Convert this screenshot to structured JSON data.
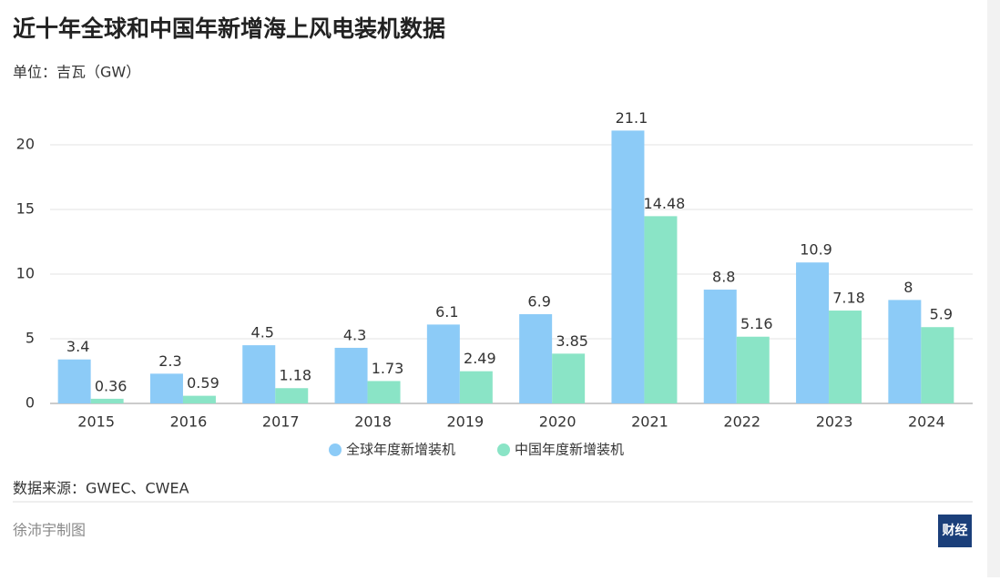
{
  "chart_data": {
    "type": "bar",
    "title": "近十年全球和中国年新增海上风电装机数据",
    "subtitle": "单位：吉瓦（GW）",
    "categories": [
      "2015",
      "2016",
      "2017",
      "2018",
      "2019",
      "2020",
      "2021",
      "2022",
      "2023",
      "2024"
    ],
    "series": [
      {
        "name": "全球年度新增装机",
        "color": "#8ccbf7",
        "values": [
          3.4,
          2.3,
          4.5,
          4.3,
          6.1,
          6.9,
          21.1,
          8.8,
          10.9,
          8
        ]
      },
      {
        "name": "中国年度新增装机",
        "color": "#8ae4c6",
        "values": [
          0.36,
          0.59,
          1.18,
          1.73,
          2.49,
          3.85,
          14.48,
          5.16,
          7.18,
          5.9
        ]
      }
    ],
    "ylim": [
      0,
      22
    ],
    "yticks": [
      0,
      5,
      10,
      15,
      20
    ],
    "grid": true,
    "legend": "bottom",
    "source": "数据来源：GWEC、CWEA",
    "credit": "徐沛宇制图",
    "logo": "财经"
  }
}
